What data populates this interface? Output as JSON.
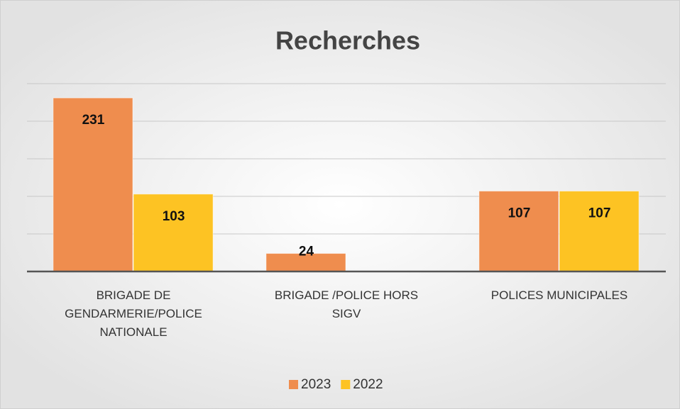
{
  "chart_data": {
    "type": "bar",
    "title": "Recherches",
    "categories": [
      "BRIGADE DE GENDARMERIE/POLICE NATIONALE",
      "BRIGADE /POLICE HORS SIGV",
      "POLICES MUNICIPALES"
    ],
    "series": [
      {
        "name": "2023",
        "color": "#ef8d4e",
        "values": [
          231,
          24,
          107
        ]
      },
      {
        "name": "2022",
        "color": "#fdc323",
        "values": [
          103,
          null,
          107
        ]
      }
    ],
    "ylim": [
      0,
      250
    ],
    "yticks": [
      0,
      50,
      100,
      150,
      200,
      250
    ],
    "grid": true,
    "legend": "bottom"
  }
}
